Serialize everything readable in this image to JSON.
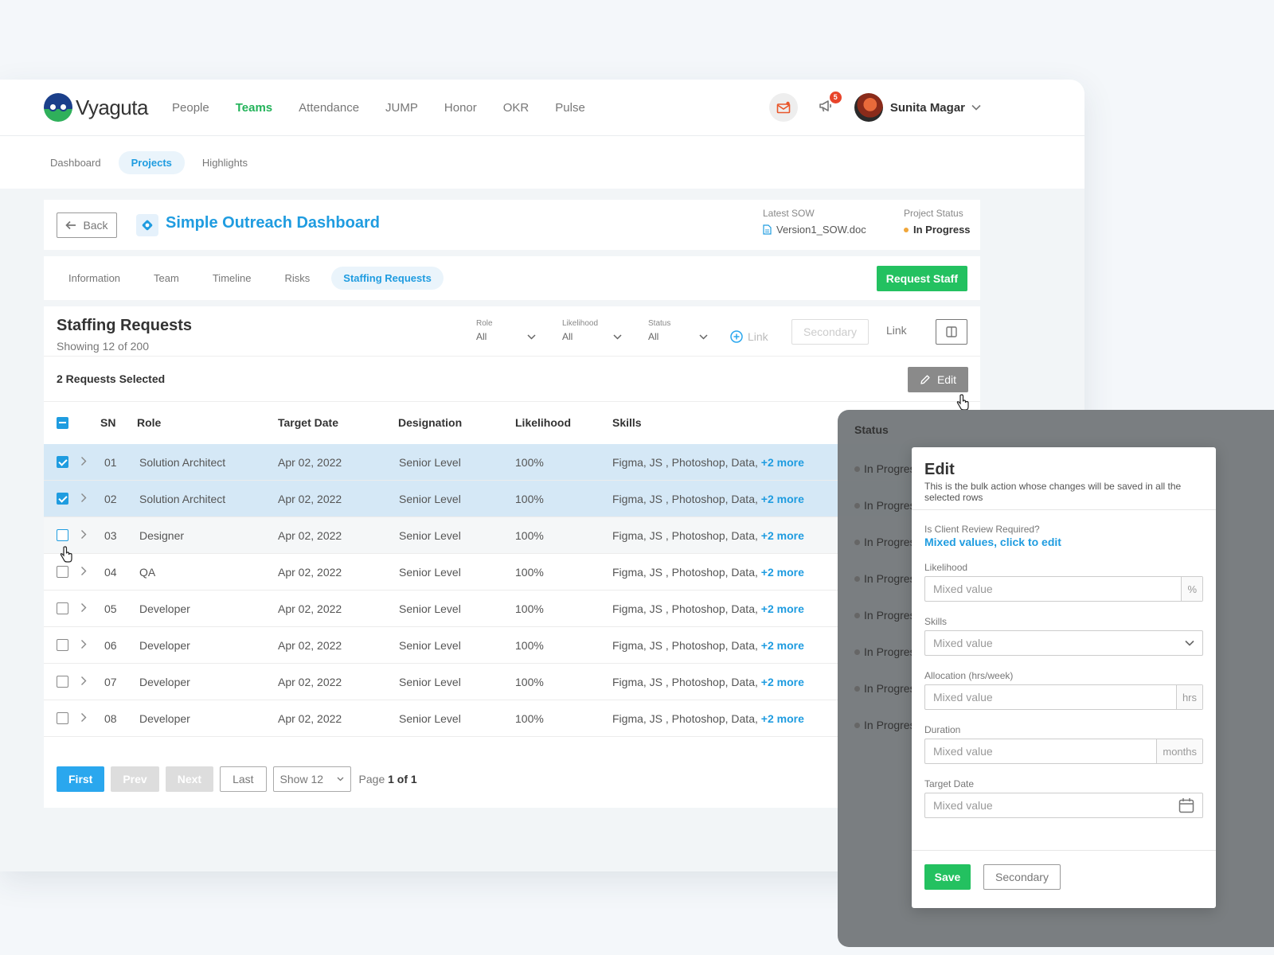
{
  "brand": {
    "name": "Vyaguta"
  },
  "nav": {
    "items": [
      "People",
      "Teams",
      "Attendance",
      "JUMP",
      "Honor",
      "OKR",
      "Pulse"
    ],
    "active": "Teams"
  },
  "user": {
    "name": "Sunita Magar",
    "notifications": "5"
  },
  "subnav": {
    "items": [
      "Dashboard",
      "Projects",
      "Highlights"
    ],
    "active": "Projects"
  },
  "project": {
    "back_label": "Back",
    "title": "Simple Outreach Dashboard",
    "sow_label": "Latest SOW",
    "sow_file": "Version1_SOW.doc",
    "status_label": "Project Status",
    "status_value": "In Progress"
  },
  "tabs": {
    "items": [
      "Information",
      "Team",
      "Timeline",
      "Risks",
      "Staffing Requests"
    ],
    "active": "Staffing Requests",
    "request_label": "Request Staff"
  },
  "staffing": {
    "title": "Staffing Requests",
    "subtitle": "Showing 12 of 200",
    "filters": [
      {
        "label": "Role",
        "value": "All"
      },
      {
        "label": "Likelihood",
        "value": "All"
      },
      {
        "label": "Status",
        "value": "All"
      }
    ],
    "link_disabled": "Link",
    "secondary_disabled": "Secondary",
    "link_label": "Link",
    "selected_text": "2 Requests Selected",
    "edit_label": "Edit"
  },
  "table": {
    "columns": [
      "SN",
      "Role",
      "Target Date",
      "Designation",
      "Likelihood",
      "Skills",
      "Status"
    ],
    "rows": [
      {
        "sn": "01",
        "role": "Solution Architect",
        "date": "Apr 02, 2022",
        "designation": "Senior Level",
        "likelihood": "100%",
        "skills": "Figma, JS , Photoshop, Data,",
        "more": "+2 more",
        "status": "In Progress",
        "checked": true
      },
      {
        "sn": "02",
        "role": "Solution Architect",
        "date": "Apr 02, 2022",
        "designation": "Senior Level",
        "likelihood": "100%",
        "skills": "Figma, JS , Photoshop, Data,",
        "more": "+2 more",
        "status": "In Progress",
        "checked": true
      },
      {
        "sn": "03",
        "role": "Designer",
        "date": "Apr 02, 2022",
        "designation": "Senior Level",
        "likelihood": "100%",
        "skills": "Figma, JS , Photoshop, Data,",
        "more": "+2 more",
        "status": "In Progress",
        "checked": false
      },
      {
        "sn": "04",
        "role": "QA",
        "date": "Apr 02, 2022",
        "designation": "Senior Level",
        "likelihood": "100%",
        "skills": "Figma, JS , Photoshop, Data,",
        "more": "+2 more",
        "status": "In Progress",
        "checked": false
      },
      {
        "sn": "05",
        "role": "Developer",
        "date": "Apr 02, 2022",
        "designation": "Senior Level",
        "likelihood": "100%",
        "skills": "Figma, JS , Photoshop, Data,",
        "more": "+2 more",
        "status": "In Progress",
        "checked": false
      },
      {
        "sn": "06",
        "role": "Developer",
        "date": "Apr 02, 2022",
        "designation": "Senior Level",
        "likelihood": "100%",
        "skills": "Figma, JS , Photoshop, Data,",
        "more": "+2 more",
        "status": "In Progress",
        "checked": false
      },
      {
        "sn": "07",
        "role": "Developer",
        "date": "Apr 02, 2022",
        "designation": "Senior Level",
        "likelihood": "100%",
        "skills": "Figma, JS , Photoshop, Data,",
        "more": "+2 more",
        "status": "In Progress",
        "checked": false
      },
      {
        "sn": "08",
        "role": "Developer",
        "date": "Apr 02, 2022",
        "designation": "Senior Level",
        "likelihood": "100%",
        "skills": "Figma, JS , Photoshop, Data,",
        "more": "+2 more",
        "status": "In Progress",
        "checked": false
      }
    ]
  },
  "pagination": {
    "first": "First",
    "prev": "Prev",
    "next": "Next",
    "last": "Last",
    "show": "Show 12",
    "page_prefix": "Page",
    "page_value": "1 of 1"
  },
  "edit_panel": {
    "title": "Edit",
    "description": "This is the bulk action whose changes will be saved in all the selected rows",
    "review_label": "Is Client Review Required?",
    "review_link": "Mixed values, click to edit",
    "fields": [
      {
        "label": "Likelihood",
        "placeholder": "Mixed value",
        "addon": "%"
      },
      {
        "label": "Skills",
        "placeholder": "Mixed value",
        "addon": ""
      },
      {
        "label": "Allocation (hrs/week)",
        "placeholder": "Mixed value",
        "addon": "hrs"
      },
      {
        "label": "Duration",
        "placeholder": "Mixed value",
        "addon": "months"
      },
      {
        "label": "Target Date",
        "placeholder": "Mixed value",
        "addon": ""
      }
    ],
    "save_label": "Save",
    "secondary_label": "Secondary"
  },
  "colors": {
    "accent": "#1f9ce0",
    "primary_green": "#23c160",
    "nav_active": "#23b35a",
    "selected_row": "#d5e8f6"
  },
  "icons": [
    "arrow-left-icon",
    "project-icon",
    "document-icon",
    "plus-circle-icon",
    "columns-icon",
    "pencil-icon",
    "chevron-right-icon",
    "chevron-down-icon",
    "calendar-icon",
    "mail-icon",
    "megaphone-icon",
    "hand-cursor-icon"
  ]
}
